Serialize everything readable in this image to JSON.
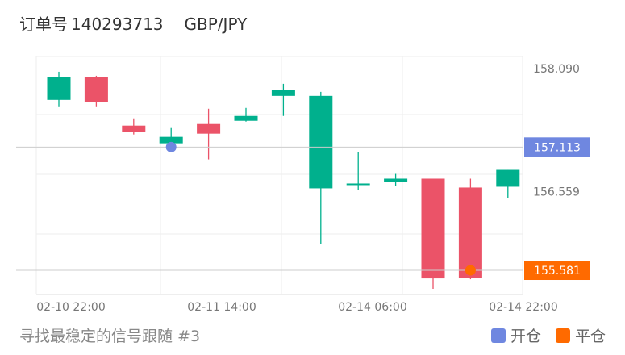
{
  "header": {
    "order_label": "订单号",
    "order_number": "140293713",
    "pair": "GBP/JPY"
  },
  "footer": {
    "caption": "寻找最稳定的信号跟随 #3"
  },
  "legend": {
    "open_label": "开仓",
    "close_label": "平仓"
  },
  "colors": {
    "up": "#00b08d",
    "down": "#eb5368",
    "open_marker": "#6f87e0",
    "close_marker": "#ff6a00",
    "grid": "#eeeeee",
    "axis_text": "#777777"
  },
  "chart_data": {
    "type": "candlestick",
    "x_tick_labels": [
      "02-10 22:00",
      "02-11 14:00",
      "02-14 06:00",
      "02-14 22:00"
    ],
    "y_tick_labels": [
      "158.090",
      "156.559"
    ],
    "ylim": [
      155.28,
      158.24
    ],
    "grid": true,
    "candles": [
      {
        "open": 157.7,
        "close": 157.98,
        "high": 158.05,
        "low": 157.62
      },
      {
        "open": 157.98,
        "close": 157.67,
        "high": 158.0,
        "low": 157.62
      },
      {
        "open": 157.38,
        "close": 157.3,
        "high": 157.47,
        "low": 157.27
      },
      {
        "open": 157.16,
        "close": 157.24,
        "high": 157.35,
        "low": 157.1
      },
      {
        "open": 157.4,
        "close": 157.28,
        "high": 157.59,
        "low": 156.96
      },
      {
        "open": 157.44,
        "close": 157.5,
        "high": 157.6,
        "low": 157.43
      },
      {
        "open": 157.75,
        "close": 157.82,
        "high": 157.9,
        "low": 157.5
      },
      {
        "open": 156.6,
        "close": 157.75,
        "high": 157.8,
        "low": 155.91
      },
      {
        "open": 156.64,
        "close": 156.66,
        "high": 157.05,
        "low": 156.58
      },
      {
        "open": 156.68,
        "close": 156.72,
        "high": 156.78,
        "low": 156.63
      },
      {
        "open": 156.72,
        "close": 155.48,
        "high": 156.72,
        "low": 155.35
      },
      {
        "open": 156.61,
        "close": 155.49,
        "high": 156.72,
        "low": 155.47
      },
      {
        "open": 156.62,
        "close": 156.83,
        "high": 156.83,
        "low": 156.48
      }
    ],
    "markers": [
      {
        "type": "open",
        "label": "157.113",
        "price": 157.113,
        "candle_index": 3
      },
      {
        "type": "close",
        "label": "155.581",
        "price": 155.581,
        "candle_index": 11
      }
    ]
  }
}
